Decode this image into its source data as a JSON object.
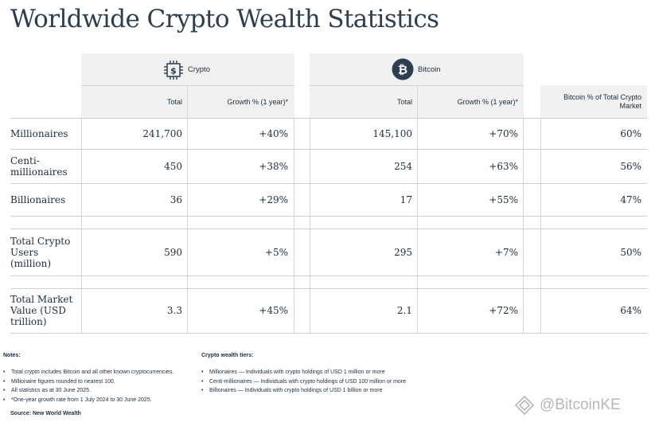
{
  "title": "Worldwide Crypto Wealth Statistics",
  "groups": {
    "crypto": {
      "label": "Crypto",
      "icon": "chip-dollar-icon"
    },
    "bitcoin": {
      "label": "Bitcoin",
      "icon": "bitcoin-icon"
    }
  },
  "columns": {
    "crypto_total": "Total",
    "crypto_growth": "Growth % (1 year)*",
    "btc_total": "Total",
    "btc_growth": "Growth % (1 year)*",
    "btc_share": "Bitcoin % of Total Crypto Market"
  },
  "rows": [
    {
      "label": "Millionaires",
      "crypto_total": "241,700",
      "crypto_growth": "+40%",
      "btc_total": "145,100",
      "btc_growth": "+70%",
      "btc_share": "60%"
    },
    {
      "label": "Centi-millionaires",
      "crypto_total": "450",
      "crypto_growth": "+38%",
      "btc_total": "254",
      "btc_growth": "+63%",
      "btc_share": "56%"
    },
    {
      "label": "Billionaires",
      "crypto_total": "36",
      "crypto_growth": "+29%",
      "btc_total": "17",
      "btc_growth": "+55%",
      "btc_share": "47%"
    },
    {
      "label": "Total Crypto Users (million)",
      "crypto_total": "590",
      "crypto_growth": "+5%",
      "btc_total": "295",
      "btc_growth": "+7%",
      "btc_share": "50%"
    },
    {
      "label": "Total Market Value (USD trillion)",
      "crypto_total": "3.3",
      "crypto_growth": "+45%",
      "btc_total": "2.1",
      "btc_growth": "+72%",
      "btc_share": "64%"
    }
  ],
  "notes": {
    "heading": "Notes:",
    "items": [
      "Total crypto includes Bitcoin and all other known cryptocurrencies.",
      "Millionaire figures rounded to nearest 100.",
      "All statistics as at 30 June 2025.",
      "*One-year growth rate from 1 July 2024 to 30 June 2025."
    ],
    "source": "Source: New World Wealth"
  },
  "tiers": {
    "heading": "Crypto wealth tiers:",
    "items": [
      "Millionaires — Individuals with crypto holdings of USD 1 million or more",
      "Centi-millionaires — Individuals with crypto holdings of USD 100 million or more",
      "Billionaires — Individuals with crypto holdings of USD 1 billion or more"
    ]
  },
  "watermark": "@BitcoinKE",
  "colors": {
    "panel_bg": "#f1f1f1",
    "text": "#1e2d3d",
    "icon_navy": "#2c3e50",
    "rule": "#cfcfcf"
  }
}
